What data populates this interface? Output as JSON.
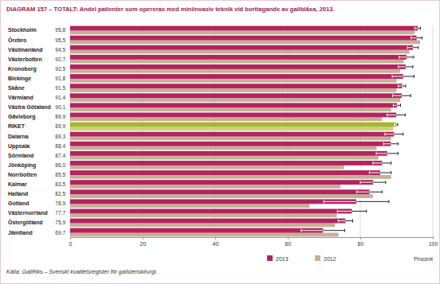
{
  "chart_data": {
    "type": "bar",
    "orientation": "horizontal",
    "title": "DIAGRAM 157 – TOTALT: Andel patienter som opereras med miniinvasiv teknik vid borttagande av gallblåsa, 2013.",
    "x_label": "Procent",
    "annotations": [
      "Källa: GallRiks – Svenskt kvalitetsregister för gallstenskirurgi."
    ],
    "categories": [
      "Stockholm",
      "Örebro",
      "Västmanland",
      "Västerbotten",
      "Kronoberg",
      "Blekinge",
      "Skåne",
      "Värmland",
      "Västra Götaland",
      "Gävleborg",
      "RIKET",
      "Dalarna",
      "Uppsala",
      "Sörmland",
      "Jönköping",
      "Norrbotten",
      "Kalmar",
      "Halland",
      "Gotland",
      "Västernorrland",
      "Östergötland",
      "Jämtland"
    ],
    "series": [
      {
        "name": "2013",
        "color": "#b3245e",
        "colors": [
          "#b3245e",
          "#b3245e",
          "#b3245e",
          "#b3245e",
          "#b3245e",
          "#b3245e",
          "#b3245e",
          "#b3245e",
          "#b3245e",
          "#b3245e",
          "#a9b52e",
          "#b3245e",
          "#b3245e",
          "#b3245e",
          "#b3245e",
          "#b3245e",
          "#b3245e",
          "#b3245e",
          "#b3245e",
          "#b3245e",
          "#b3245e",
          "#b3245e"
        ],
        "values": [
          95.8,
          95.5,
          94.5,
          92.7,
          92.5,
          91.8,
          91.5,
          91.4,
          90.1,
          89.9,
          89.9,
          89.3,
          88.4,
          87.4,
          86.0,
          85.5,
          83.5,
          82.5,
          78.9,
          77.7,
          75.9,
          69.7
        ],
        "value_labels": [
          "95,8",
          "95,5",
          "94,5",
          "92,7",
          "92,5",
          "91,8",
          "91,5",
          "91,4",
          "90,1",
          "89,9",
          "89,9",
          "89,3",
          "88,4",
          "87,4",
          "86,0",
          "85,5",
          "83,5",
          "82,5",
          "78,9",
          "77,7",
          "75,9",
          "69,7"
        ],
        "errors": [
          0.8,
          1.5,
          1.5,
          2,
          2,
          3,
          1,
          2.5,
          1,
          2.5,
          0.4,
          2.5,
          2,
          3,
          2.5,
          3,
          3.5,
          3.5,
          9,
          4,
          2,
          6
        ]
      },
      {
        "name": "2012",
        "color": "#c6b098",
        "colors": [
          "#c6b098",
          "#c6b098",
          "#c6b098",
          "#c6b098",
          "#c6b098",
          "#c6b098",
          "#c6b098",
          "#c6b098",
          "#c6b098",
          "#c6b098",
          "#cdd37a",
          "#c6b098",
          "#c6b098",
          "#c6b098",
          "#c6b098",
          "#c6b098",
          "#c6b098",
          "#c6b098",
          "#c6b098",
          "#c6b098",
          "#c6b098",
          "#c6b098"
        ],
        "values": [
          95,
          96.5,
          93.5,
          92,
          91,
          90,
          90,
          91,
          88.5,
          86,
          89,
          88.5,
          84.5,
          85,
          75.5,
          88.5,
          74.5,
          83.5,
          66,
          73.5,
          73,
          74
        ]
      }
    ],
    "data_labels": true,
    "legend": "bottom",
    "grid": true,
    "xlim": [
      0,
      100
    ],
    "xticks": [
      0,
      20,
      40,
      60,
      80,
      100
    ]
  }
}
